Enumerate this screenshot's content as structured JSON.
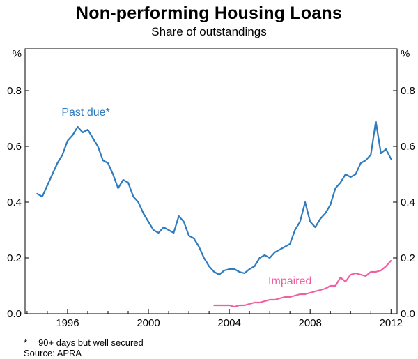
{
  "title": "Non-performing Housing Loans",
  "subtitle": "Share of outstandings",
  "footnote": {
    "marker": "*",
    "text": "90+ days but well secured"
  },
  "source": "Source: APRA",
  "chart_data": {
    "type": "line",
    "title": "Non-performing Housing Loans",
    "subtitle": "Share of outstandings",
    "unit_label": "%",
    "xlabel": "",
    "ylabel": "%",
    "xlim": [
      1993.9,
      2012.3
    ],
    "ylim": [
      0,
      0.95
    ],
    "grid": false,
    "legend_position": "inline-labels",
    "yticks": [
      0.0,
      0.2,
      0.4,
      0.6,
      0.8
    ],
    "ytick_labels": [
      "0.0",
      "0.2",
      "0.4",
      "0.6",
      "0.8"
    ],
    "xticks": [
      1996,
      2000,
      2004,
      2008,
      2012
    ],
    "xtick_labels": [
      "1996",
      "2000",
      "2004",
      "2008",
      "2012"
    ],
    "series": [
      {
        "id": "past-due",
        "name": "Past due*",
        "color": "#2e7bbf",
        "label_pos": {
          "x": 1996.9,
          "y": 0.71
        },
        "points": [
          [
            1994.5,
            0.43
          ],
          [
            1994.75,
            0.42
          ],
          [
            1995,
            0.46
          ],
          [
            1995.25,
            0.5
          ],
          [
            1995.5,
            0.54
          ],
          [
            1995.75,
            0.57
          ],
          [
            1996,
            0.62
          ],
          [
            1996.25,
            0.64
          ],
          [
            1996.5,
            0.67
          ],
          [
            1996.75,
            0.65
          ],
          [
            1997,
            0.66
          ],
          [
            1997.25,
            0.63
          ],
          [
            1997.5,
            0.6
          ],
          [
            1997.75,
            0.55
          ],
          [
            1998,
            0.54
          ],
          [
            1998.25,
            0.5
          ],
          [
            1998.5,
            0.45
          ],
          [
            1998.75,
            0.48
          ],
          [
            1999,
            0.47
          ],
          [
            1999.25,
            0.42
          ],
          [
            1999.5,
            0.4
          ],
          [
            1999.75,
            0.36
          ],
          [
            2000,
            0.33
          ],
          [
            2000.25,
            0.3
          ],
          [
            2000.5,
            0.29
          ],
          [
            2000.75,
            0.31
          ],
          [
            2001,
            0.3
          ],
          [
            2001.25,
            0.29
          ],
          [
            2001.5,
            0.35
          ],
          [
            2001.75,
            0.33
          ],
          [
            2002,
            0.28
          ],
          [
            2002.25,
            0.27
          ],
          [
            2002.5,
            0.24
          ],
          [
            2002.75,
            0.2
          ],
          [
            2003,
            0.17
          ],
          [
            2003.25,
            0.15
          ],
          [
            2003.5,
            0.14
          ],
          [
            2003.75,
            0.155
          ],
          [
            2004,
            0.16
          ],
          [
            2004.25,
            0.16
          ],
          [
            2004.5,
            0.15
          ],
          [
            2004.75,
            0.145
          ],
          [
            2005,
            0.16
          ],
          [
            2005.25,
            0.17
          ],
          [
            2005.5,
            0.2
          ],
          [
            2005.75,
            0.21
          ],
          [
            2006,
            0.2
          ],
          [
            2006.25,
            0.22
          ],
          [
            2006.5,
            0.23
          ],
          [
            2006.75,
            0.24
          ],
          [
            2007,
            0.25
          ],
          [
            2007.25,
            0.3
          ],
          [
            2007.5,
            0.33
          ],
          [
            2007.75,
            0.4
          ],
          [
            2008,
            0.33
          ],
          [
            2008.25,
            0.31
          ],
          [
            2008.5,
            0.34
          ],
          [
            2008.75,
            0.36
          ],
          [
            2009,
            0.39
          ],
          [
            2009.25,
            0.45
          ],
          [
            2009.5,
            0.47
          ],
          [
            2009.75,
            0.5
          ],
          [
            2010,
            0.49
          ],
          [
            2010.25,
            0.5
          ],
          [
            2010.5,
            0.54
          ],
          [
            2010.75,
            0.55
          ],
          [
            2011,
            0.57
          ],
          [
            2011.25,
            0.69
          ],
          [
            2011.5,
            0.575
          ],
          [
            2011.75,
            0.59
          ],
          [
            2012,
            0.555
          ]
        ]
      },
      {
        "id": "impaired",
        "name": "Impaired",
        "color": "#f0609f",
        "label_pos": {
          "x": 2007.0,
          "y": 0.105
        },
        "points": [
          [
            2003.25,
            0.03
          ],
          [
            2003.5,
            0.03
          ],
          [
            2003.75,
            0.03
          ],
          [
            2004,
            0.03
          ],
          [
            2004.25,
            0.025
          ],
          [
            2004.5,
            0.03
          ],
          [
            2004.75,
            0.03
          ],
          [
            2005,
            0.035
          ],
          [
            2005.25,
            0.04
          ],
          [
            2005.5,
            0.04
          ],
          [
            2005.75,
            0.045
          ],
          [
            2006,
            0.05
          ],
          [
            2006.25,
            0.05
          ],
          [
            2006.5,
            0.055
          ],
          [
            2006.75,
            0.06
          ],
          [
            2007,
            0.06
          ],
          [
            2007.25,
            0.065
          ],
          [
            2007.5,
            0.07
          ],
          [
            2007.75,
            0.07
          ],
          [
            2008,
            0.075
          ],
          [
            2008.25,
            0.08
          ],
          [
            2008.5,
            0.085
          ],
          [
            2008.75,
            0.09
          ],
          [
            2009,
            0.1
          ],
          [
            2009.25,
            0.1
          ],
          [
            2009.5,
            0.13
          ],
          [
            2009.75,
            0.115
          ],
          [
            2010,
            0.14
          ],
          [
            2010.25,
            0.145
          ],
          [
            2010.5,
            0.14
          ],
          [
            2010.75,
            0.135
          ],
          [
            2011,
            0.15
          ],
          [
            2011.25,
            0.15
          ],
          [
            2011.5,
            0.155
          ],
          [
            2011.75,
            0.17
          ],
          [
            2012,
            0.19
          ]
        ]
      }
    ]
  }
}
